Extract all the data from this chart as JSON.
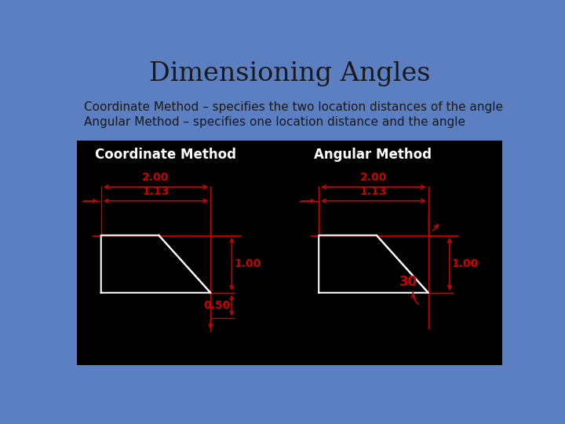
{
  "title": "Dimensioning Angles",
  "subtitle1": "Coordinate Method – specifies the two location distances of the angle",
  "subtitle2": "Angular Method – specifies one location distance and the angle",
  "bg_color": "#5b7fc0",
  "bg_color_bottom": "#3a5faa",
  "black_panel_color": "#000000",
  "text_color": "#1a1a1a",
  "white_text": "#ffffff",
  "red_color": "#cc0000",
  "white_shape": "#ffffff",
  "coord_label": "Coordinate Method",
  "angular_label": "Angular Method",
  "dim_200": "2.00",
  "dim_113": "1.13",
  "dim_100": "1.00",
  "dim_050": "0.50",
  "dim_30": "30"
}
